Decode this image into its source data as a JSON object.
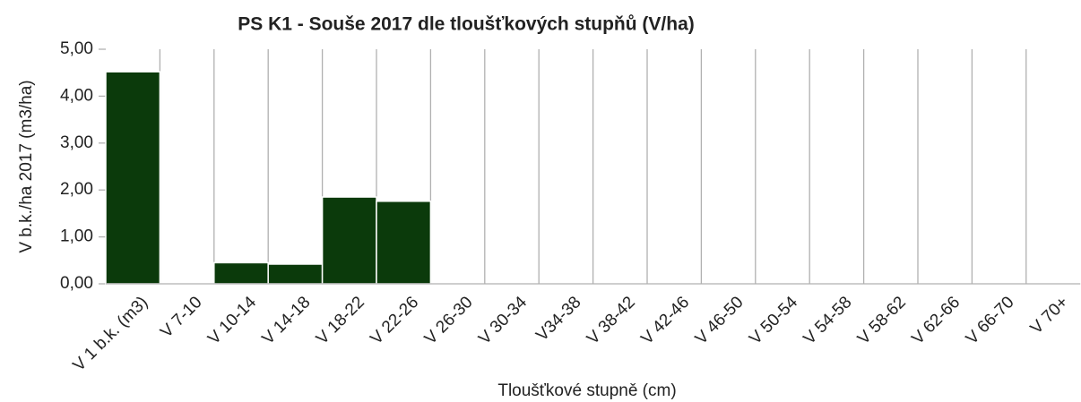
{
  "chart_data": {
    "type": "bar",
    "title": "PS K1 - Souše 2017 dle tloušťkových stupňů  (V/ha)",
    "x_label": "Tloušťkové stupně (cm)",
    "y_label": "V b.k./ha 2017 (m3/ha)",
    "categories": [
      "V 1  b.k. (m3)",
      "V 7-10",
      "V 10-14",
      "V 14-18",
      "V 18-22",
      "V 22-26",
      "V 26-30",
      "V 30-34",
      "V34-38",
      "V 38-42",
      "V 42-46",
      "V 46-50",
      "V 50-54",
      "V 54-58",
      "V 58-62",
      "V 62-66",
      "V 66-70",
      "V 70+"
    ],
    "values": [
      4.52,
      0,
      0.45,
      0.42,
      1.85,
      1.76,
      0,
      0,
      0,
      0,
      0,
      0,
      0,
      0,
      0,
      0,
      0,
      0
    ],
    "color": "#0b3a0b",
    "ylim": [
      0,
      5
    ],
    "yticks": [
      {
        "value": 0,
        "label": "0,00"
      },
      {
        "value": 1,
        "label": "1,00"
      },
      {
        "value": 2,
        "label": "2,00"
      },
      {
        "value": 3,
        "label": "3,00"
      },
      {
        "value": 4,
        "label": "4,00"
      },
      {
        "value": 5,
        "label": "5,00"
      }
    ],
    "grid": true
  }
}
